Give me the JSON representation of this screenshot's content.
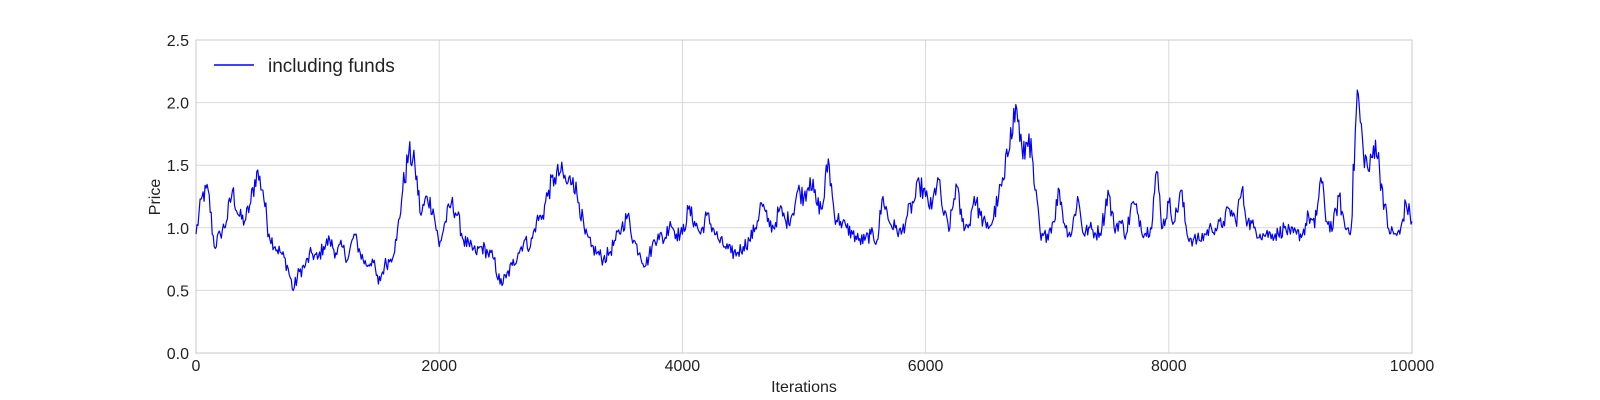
{
  "chart_data": {
    "type": "line",
    "xlabel": "Iterations",
    "ylabel": "Price",
    "xlim": [
      0,
      10000
    ],
    "ylim": [
      0.0,
      2.5
    ],
    "xticks": [
      0,
      2000,
      4000,
      6000,
      8000,
      10000
    ],
    "xtick_labels": [
      "0",
      "2000",
      "4000",
      "6000",
      "8000",
      "10000"
    ],
    "yticks": [
      0.0,
      0.5,
      1.0,
      1.5,
      2.0,
      2.5
    ],
    "ytick_labels": [
      "0.0",
      "0.5",
      "1.0",
      "1.5",
      "2.0",
      "2.5"
    ],
    "grid": true,
    "legend": {
      "position": "top-left",
      "entries": [
        "including funds"
      ]
    },
    "series": [
      {
        "name": "including funds",
        "color": "#0000ff",
        "x": [
          0,
          50,
          100,
          150,
          200,
          250,
          300,
          350,
          400,
          450,
          500,
          550,
          600,
          650,
          700,
          750,
          800,
          850,
          900,
          950,
          1000,
          1050,
          1100,
          1150,
          1200,
          1250,
          1300,
          1350,
          1400,
          1450,
          1500,
          1550,
          1600,
          1650,
          1700,
          1750,
          1800,
          1850,
          1900,
          1950,
          2000,
          2050,
          2100,
          2150,
          2200,
          2250,
          2300,
          2350,
          2400,
          2450,
          2500,
          2550,
          2600,
          2650,
          2700,
          2750,
          2800,
          2850,
          2900,
          2950,
          3000,
          3050,
          3100,
          3150,
          3200,
          3250,
          3300,
          3350,
          3400,
          3450,
          3500,
          3550,
          3600,
          3650,
          3700,
          3750,
          3800,
          3850,
          3900,
          3950,
          4000,
          4050,
          4100,
          4150,
          4200,
          4250,
          4300,
          4350,
          4400,
          4450,
          4500,
          4550,
          4600,
          4650,
          4700,
          4750,
          4800,
          4850,
          4900,
          4950,
          5000,
          5050,
          5100,
          5150,
          5200,
          5250,
          5300,
          5350,
          5400,
          5450,
          5500,
          5550,
          5600,
          5650,
          5700,
          5750,
          5800,
          5850,
          5900,
          5950,
          6000,
          6050,
          6100,
          6150,
          6200,
          6250,
          6300,
          6350,
          6400,
          6450,
          6500,
          6550,
          6600,
          6650,
          6700,
          6750,
          6800,
          6850,
          6900,
          6950,
          7000,
          7050,
          7100,
          7150,
          7200,
          7250,
          7300,
          7350,
          7400,
          7450,
          7500,
          7550,
          7600,
          7650,
          7700,
          7750,
          7800,
          7850,
          7900,
          7950,
          8000,
          8050,
          8100,
          8150,
          8200,
          8250,
          8300,
          8350,
          8400,
          8450,
          8500,
          8550,
          8600,
          8650,
          8700,
          8750,
          8800,
          8850,
          8900,
          8950,
          9000,
          9050,
          9100,
          9150,
          9200,
          9250,
          9300,
          9350,
          9400,
          9450,
          9500,
          9550,
          9600,
          9650,
          9700,
          9750,
          9800,
          9850,
          9900,
          9950,
          10000
        ],
        "y": [
          0.95,
          1.25,
          1.3,
          0.85,
          0.95,
          1.05,
          1.3,
          1.1,
          1.05,
          1.2,
          1.45,
          1.3,
          0.95,
          0.85,
          0.8,
          0.7,
          0.5,
          0.65,
          0.7,
          0.8,
          0.75,
          0.85,
          0.9,
          0.8,
          0.85,
          0.75,
          0.95,
          0.8,
          0.7,
          0.75,
          0.55,
          0.7,
          0.75,
          0.9,
          1.3,
          1.6,
          1.5,
          1.1,
          1.25,
          1.15,
          0.85,
          1.05,
          1.2,
          1.1,
          0.9,
          0.85,
          0.8,
          0.85,
          0.8,
          0.75,
          0.55,
          0.6,
          0.7,
          0.8,
          0.9,
          0.85,
          1.05,
          1.1,
          1.3,
          1.4,
          1.45,
          1.35,
          1.4,
          1.2,
          0.95,
          0.85,
          0.8,
          0.75,
          0.8,
          0.9,
          1.0,
          1.1,
          0.9,
          0.8,
          0.7,
          0.85,
          0.95,
          0.9,
          1.05,
          0.95,
          0.95,
          1.15,
          1.05,
          0.95,
          1.1,
          1.0,
          0.9,
          0.85,
          0.8,
          0.8,
          0.85,
          0.9,
          1.0,
          1.2,
          1.05,
          1.0,
          1.15,
          1.05,
          1.1,
          1.3,
          1.25,
          1.4,
          1.2,
          1.15,
          1.55,
          1.1,
          1.05,
          1.0,
          0.95,
          0.9,
          0.9,
          0.95,
          0.9,
          1.25,
          1.05,
          1.0,
          0.95,
          1.1,
          1.2,
          1.35,
          1.25,
          1.15,
          1.4,
          1.1,
          1.0,
          1.35,
          1.05,
          1.0,
          1.25,
          1.1,
          1.0,
          1.05,
          1.25,
          1.4,
          1.8,
          1.95,
          1.55,
          1.75,
          1.3,
          0.9,
          0.95,
          1.05,
          1.3,
          1.0,
          0.95,
          1.25,
          0.95,
          1.0,
          0.95,
          1.0,
          1.3,
          1.0,
          1.05,
          0.95,
          1.2,
          1.1,
          0.95,
          1.0,
          1.45,
          1.0,
          1.2,
          1.05,
          1.3,
          0.95,
          0.9,
          0.9,
          0.95,
          1.0,
          1.0,
          1.05,
          1.15,
          1.05,
          1.3,
          1.05,
          1.0,
          0.95,
          0.95,
          0.95,
          0.95,
          1.0,
          0.95,
          0.95,
          0.95,
          1.1,
          1.0,
          1.4,
          1.05,
          1.0,
          1.25,
          1.0,
          1.0,
          2.1,
          1.6,
          1.45,
          1.7,
          1.35,
          1.0,
          0.95,
          0.95,
          1.2,
          1.05
        ]
      }
    ]
  }
}
